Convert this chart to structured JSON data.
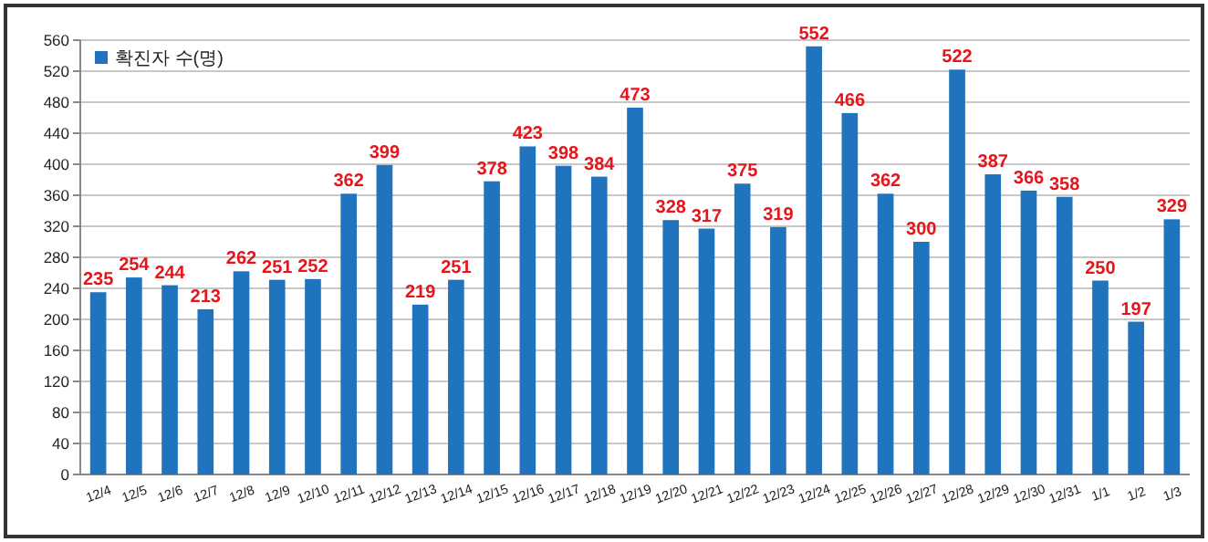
{
  "chart_data": {
    "type": "bar",
    "categories": [
      "12/4",
      "12/5",
      "12/6",
      "12/7",
      "12/8",
      "12/9",
      "12/10",
      "12/11",
      "12/12",
      "12/13",
      "12/14",
      "12/15",
      "12/16",
      "12/17",
      "12/18",
      "12/19",
      "12/20",
      "12/21",
      "12/22",
      "12/23",
      "12/24",
      "12/25",
      "12/26",
      "12/27",
      "12/28",
      "12/29",
      "12/30",
      "12/31",
      "1/1",
      "1/2",
      "1/3"
    ],
    "series": [
      {
        "name": "확진자 수(명)",
        "color": "#1f74bd",
        "values": [
          235,
          254,
          244,
          213,
          262,
          251,
          252,
          362,
          399,
          219,
          251,
          378,
          423,
          398,
          384,
          473,
          328,
          317,
          375,
          319,
          552,
          466,
          362,
          300,
          522,
          387,
          366,
          358,
          250,
          197,
          329
        ]
      }
    ],
    "ylim": [
      0,
      560
    ],
    "yticks": [
      0,
      40,
      80,
      120,
      160,
      200,
      240,
      280,
      320,
      360,
      400,
      440,
      480,
      520,
      560
    ],
    "grid": "y",
    "legend": "top left",
    "data_labels": true
  }
}
